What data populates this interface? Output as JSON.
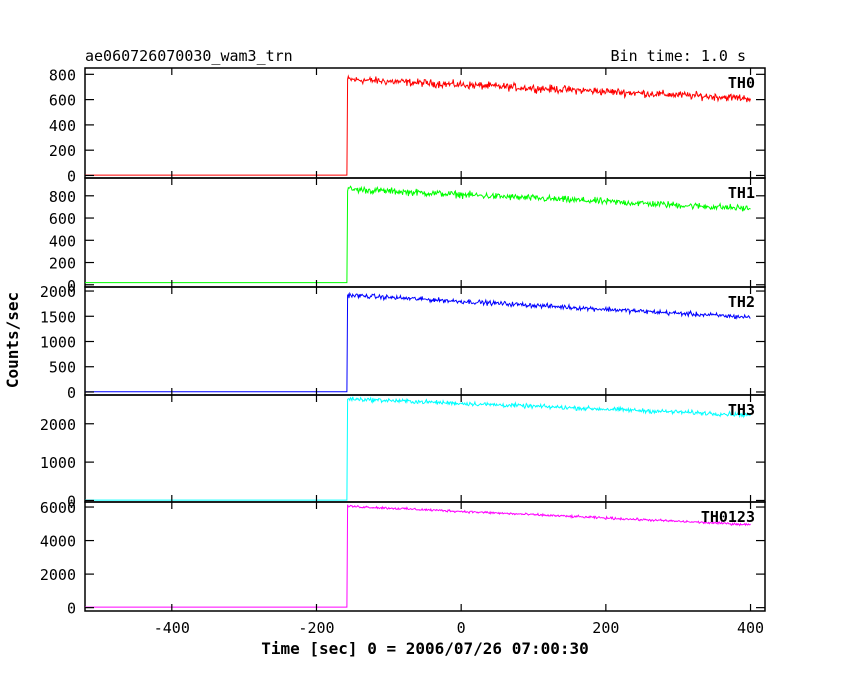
{
  "header": {
    "title": "ae060726070030_wam3_trn",
    "bin_time": "Bin time: 1.0 s"
  },
  "chart_data": {
    "type": "line",
    "xlabel": "Time [sec] 0 = 2006/07/26 07:00:30",
    "ylabel": "Counts/sec",
    "xlim": [
      -520,
      420
    ],
    "x_ticks": [
      -400,
      -200,
      0,
      200,
      400
    ],
    "x_start": -520,
    "x_trigger": -158,
    "x_end": 400,
    "grid": false,
    "panels": [
      {
        "name": "TH0",
        "color": "#ff0000",
        "ylim": [
          -20,
          850
        ],
        "yticks": [
          0,
          200,
          400,
          600,
          800
        ],
        "baseline": 3,
        "peak": 760,
        "end": 610,
        "noise": 30
      },
      {
        "name": "TH1",
        "color": "#00ff00",
        "ylim": [
          -20,
          960
        ],
        "yticks": [
          0,
          200,
          400,
          600,
          800
        ],
        "baseline": 20,
        "peak": 860,
        "end": 685,
        "noise": 30
      },
      {
        "name": "TH2",
        "color": "#0000ff",
        "ylim": [
          -60,
          2080
        ],
        "yticks": [
          0,
          500,
          1000,
          1500,
          2000
        ],
        "baseline": 6,
        "peak": 1920,
        "end": 1480,
        "noise": 45
      },
      {
        "name": "TH3",
        "color": "#00ffff",
        "ylim": [
          -40,
          2750
        ],
        "yticks": [
          0,
          1000,
          2000
        ],
        "baseline": 10,
        "peak": 2650,
        "end": 2230,
        "noise": 55
      },
      {
        "name": "TH0123",
        "color": "#ff00ff",
        "ylim": [
          -200,
          6300
        ],
        "yticks": [
          0,
          2000,
          4000,
          6000
        ],
        "baseline": 30,
        "peak": 6050,
        "end": 4950,
        "noise": 70
      }
    ]
  }
}
